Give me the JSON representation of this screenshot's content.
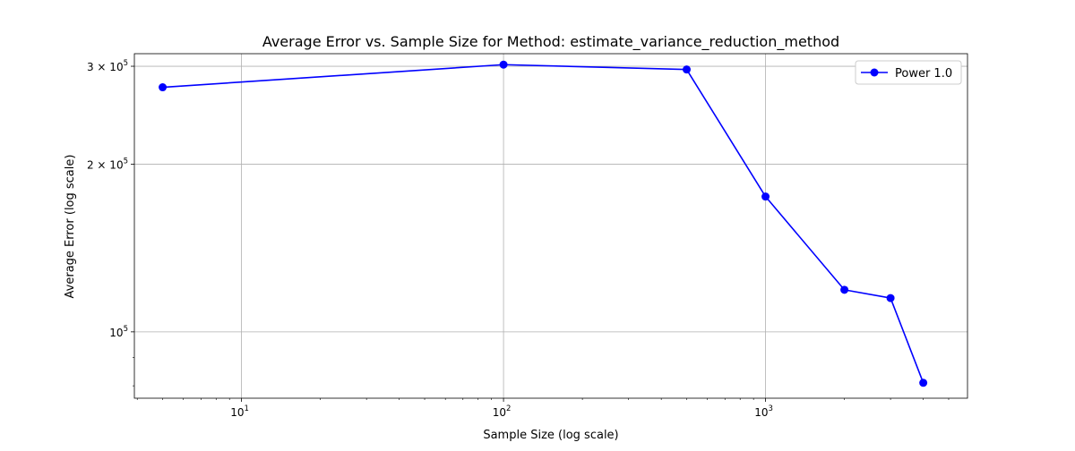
{
  "chart_data": {
    "type": "line",
    "title": "Average Error vs. Sample Size for Method: estimate_variance_reduction_method",
    "xlabel": "Sample Size (log scale)",
    "ylabel": "Average Error (log scale)",
    "xscale": "log",
    "yscale": "log",
    "xlim": [
      3.9,
      5900
    ],
    "ylim": [
      76000,
      316000
    ],
    "grid": true,
    "legend_position": "top-right",
    "x_ticks": [
      {
        "value": 10,
        "base": "10",
        "exp": "1"
      },
      {
        "value": 100,
        "base": "10",
        "exp": "2"
      },
      {
        "value": 1000,
        "base": "10",
        "exp": "3"
      }
    ],
    "y_ticks": [
      {
        "value": 100000,
        "mantissa": "",
        "base": "10",
        "exp": "5"
      },
      {
        "value": 200000,
        "mantissa": "2 × ",
        "base": "10",
        "exp": "5"
      },
      {
        "value": 300000,
        "mantissa": "3 × ",
        "base": "10",
        "exp": "5"
      }
    ],
    "series": [
      {
        "name": "Power 1.0",
        "color": "#0000ff",
        "x": [
          5,
          100,
          500,
          1000,
          2000,
          3000,
          4000
        ],
        "y": [
          275000,
          302000,
          296000,
          175000,
          119000,
          115000,
          81000
        ]
      }
    ]
  }
}
